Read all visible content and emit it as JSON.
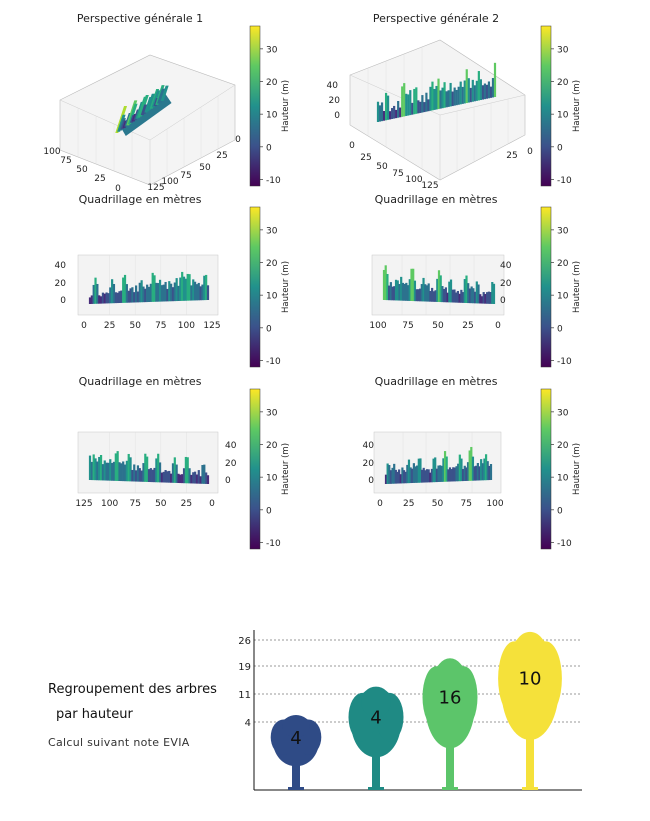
{
  "chart_data": [
    {
      "type": "surface",
      "title": "Perspective générale 1",
      "colorbar": {
        "label": "Hauteur (m)",
        "ticks": [
          -10,
          0,
          10,
          20,
          30
        ],
        "range": [
          -12,
          37
        ]
      },
      "axes": {
        "x_ticks": [
          "0",
          "25",
          "50",
          "75",
          "100"
        ],
        "y_ticks": [
          "0",
          "25",
          "50",
          "75",
          "100",
          "125"
        ],
        "z_ticks": []
      }
    },
    {
      "type": "surface",
      "title": "Perspective générale 2",
      "colorbar": {
        "label": "Hauteur (m)",
        "ticks": [
          -10,
          0,
          10,
          20,
          30
        ],
        "range": [
          -12,
          37
        ]
      },
      "axes": {
        "x_ticks": [
          "0",
          "25",
          "50",
          "75",
          "100",
          "125"
        ],
        "y_ticks": [
          "0",
          "25"
        ],
        "z_ticks": [
          "0",
          "20",
          "40"
        ]
      }
    },
    {
      "type": "surface",
      "title": "Quadrillage en mètres",
      "colorbar": {
        "label": "Hauteur (m)",
        "ticks": [
          -10,
          0,
          10,
          20,
          30
        ],
        "range": [
          -12,
          37
        ]
      },
      "axes": {
        "x_ticks": [
          "0",
          "25",
          "50",
          "75",
          "100",
          "125"
        ],
        "z_ticks": [
          "0",
          "20",
          "40"
        ]
      }
    },
    {
      "type": "surface",
      "title": "Quadrillage en mètres",
      "colorbar": {
        "label": "Hauteur (m)",
        "ticks": [
          -10,
          0,
          10,
          20,
          30
        ],
        "range": [
          -12,
          37
        ]
      },
      "axes": {
        "x_ticks": [
          "100",
          "75",
          "50",
          "25",
          "0"
        ],
        "z_ticks": [
          "0",
          "20",
          "40"
        ]
      }
    },
    {
      "type": "surface",
      "title": "Quadrillage en mètres",
      "colorbar": {
        "label": "Hauteur (m)",
        "ticks": [
          -10,
          0,
          10,
          20,
          30
        ],
        "range": [
          -12,
          37
        ]
      },
      "axes": {
        "x_ticks": [
          "125",
          "100",
          "75",
          "50",
          "25",
          "0"
        ],
        "z_ticks": [
          "0",
          "20",
          "40"
        ]
      }
    },
    {
      "type": "surface",
      "title": "Quadrillage en mètres",
      "colorbar": {
        "label": "Hauteur (m)",
        "ticks": [
          -10,
          0,
          10,
          20,
          30
        ],
        "range": [
          -12,
          37
        ]
      },
      "axes": {
        "x_ticks": [
          "0",
          "25",
          "50",
          "75",
          "100"
        ],
        "z_ticks": [
          "0",
          "20",
          "40"
        ]
      }
    },
    {
      "type": "bar",
      "title": "Regroupement des arbres par hauteur",
      "subtitle": "Calcul suivant note EVIA",
      "y_gridlines": [
        4,
        11,
        19,
        26
      ],
      "categories": [
        "4",
        "11",
        "19",
        "26"
      ],
      "values": [
        4,
        4,
        16,
        10
      ],
      "colors": [
        "#2f4b86",
        "#1f8a84",
        "#5cc56a",
        "#f5e13a"
      ]
    }
  ],
  "legend": {
    "title_line1": "Regroupement des arbres",
    "title_line2": "par hauteur",
    "note": "Calcul suivant note EVIA"
  }
}
